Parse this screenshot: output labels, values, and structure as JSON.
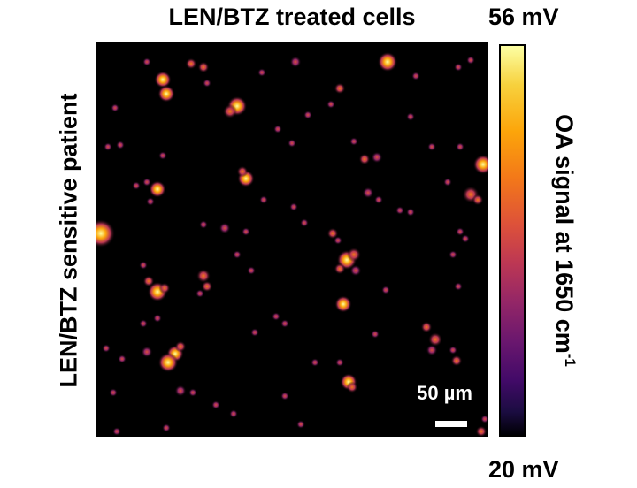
{
  "title": "LEN/BTZ treated cells",
  "side_label": "LEN/BTZ sensitive patient",
  "scale_bar": {
    "label": "50 µm"
  },
  "colorbar": {
    "max_label": "56 mV",
    "min_label": "20 mV",
    "label_text": "OA signal at 1650 cm",
    "label_superscript": "-1",
    "colormap": "inferno"
  }
}
